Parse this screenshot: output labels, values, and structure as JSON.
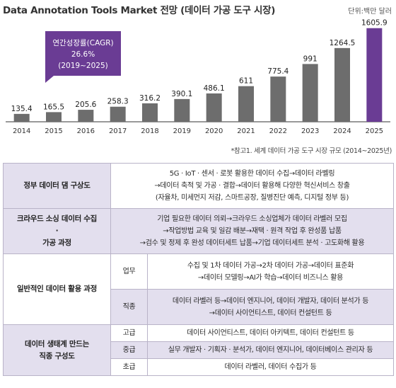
{
  "header": {
    "title": "Data Annotation Tools Market 전망 (데이터 가공 도구 시장)",
    "unit": "단위:백만 달러"
  },
  "chart_data": {
    "type": "bar",
    "categories": [
      "2014",
      "2015",
      "2016",
      "2017",
      "2018",
      "2019",
      "2020",
      "2021",
      "2022",
      "2023",
      "2024",
      "2025"
    ],
    "values": [
      135.4,
      165.5,
      205.6,
      258.3,
      316.2,
      390.1,
      486.1,
      611,
      775.4,
      991,
      1264.5,
      1605.9
    ],
    "value_labels": [
      "135.4",
      "165.5",
      "205.6",
      "258.3",
      "316.2",
      "390.1",
      "486.1",
      "611",
      "775.4",
      "991",
      "1264.5",
      "1605.9"
    ],
    "title": "Data Annotation Tools Market 전망 (데이터 가공 도구 시장)",
    "xlabel": "",
    "ylabel": "",
    "ylim": [
      0,
      1700
    ],
    "grid": false,
    "colors": {
      "bar": "#6d6d6d",
      "highlight": "#6a3c94"
    },
    "highlight_category": "2025",
    "annotation": {
      "line1": "연간성장률(CAGR)",
      "line2": "26.6%",
      "line3": "(2019~2025)"
    }
  },
  "footnote": "*참고1. 세계 데이터 가공 도구 시장 규모 (2014~2025년)",
  "table": {
    "rows": [
      {
        "category": "정부 데이터 댐 구상도",
        "lines": [
          "5G · IoT · 센서 · 로봇 활용한 데이터 수집→데이터 라벨링",
          "→데이터 축적 및 가공 · 결합→데이터 활용해 다양한 혁신서비스 창출",
          "(자율차, 미세먼지 저감, 스마트공장, 질병진단 예측, 디지털 정부 등)"
        ]
      },
      {
        "category_lines": [
          "크라우드 소싱 데이터 수집",
          "·",
          "가공 과정"
        ],
        "lines": [
          "기업 필요한 데이터 의뢰→크라우드 소싱업체가 데이터 라벨러 모집",
          "→작업방법 교육 및 일감 배분→재택 · 원격 작업 후 완성품 납품",
          "→검수 및 정제 후 완성 데이터세트 납품→기업 데이터세트 분석 · 고도화해 활용"
        ]
      },
      {
        "category": "일반적인 데이터 활용 과정",
        "subrows": [
          {
            "label": "업무",
            "lines": [
              "수집 및 1차 데이터 가공→2차 데이터 가공→데이터 표준화",
              "→데이터 모델링→AI가 학습→데이터 비즈니스 활용"
            ]
          },
          {
            "label": "직종",
            "lines": [
              "데이터 라벨러 등→데이터 엔지니어, 데이터 개발자, 데이터 분석가 등",
              "→데이터 사이언티스트, 데이터 컨설턴트 등"
            ]
          }
        ]
      },
      {
        "category_lines": [
          "데이터 생태계 만드는",
          "직종 구성도"
        ],
        "subrows": [
          {
            "label": "고급",
            "lines": [
              "데이터 사이언티스트, 데이터 아키텍트, 데이터 컨설턴트 등"
            ]
          },
          {
            "label": "중급",
            "lines": [
              "실무 개발자 · 기획자 · 분석가, 데이터 엔지니어, 데이터베이스 관리자 등"
            ]
          },
          {
            "label": "초급",
            "lines": [
              "데이터 라벨러, 데이터 수집가 등"
            ]
          }
        ]
      }
    ]
  }
}
